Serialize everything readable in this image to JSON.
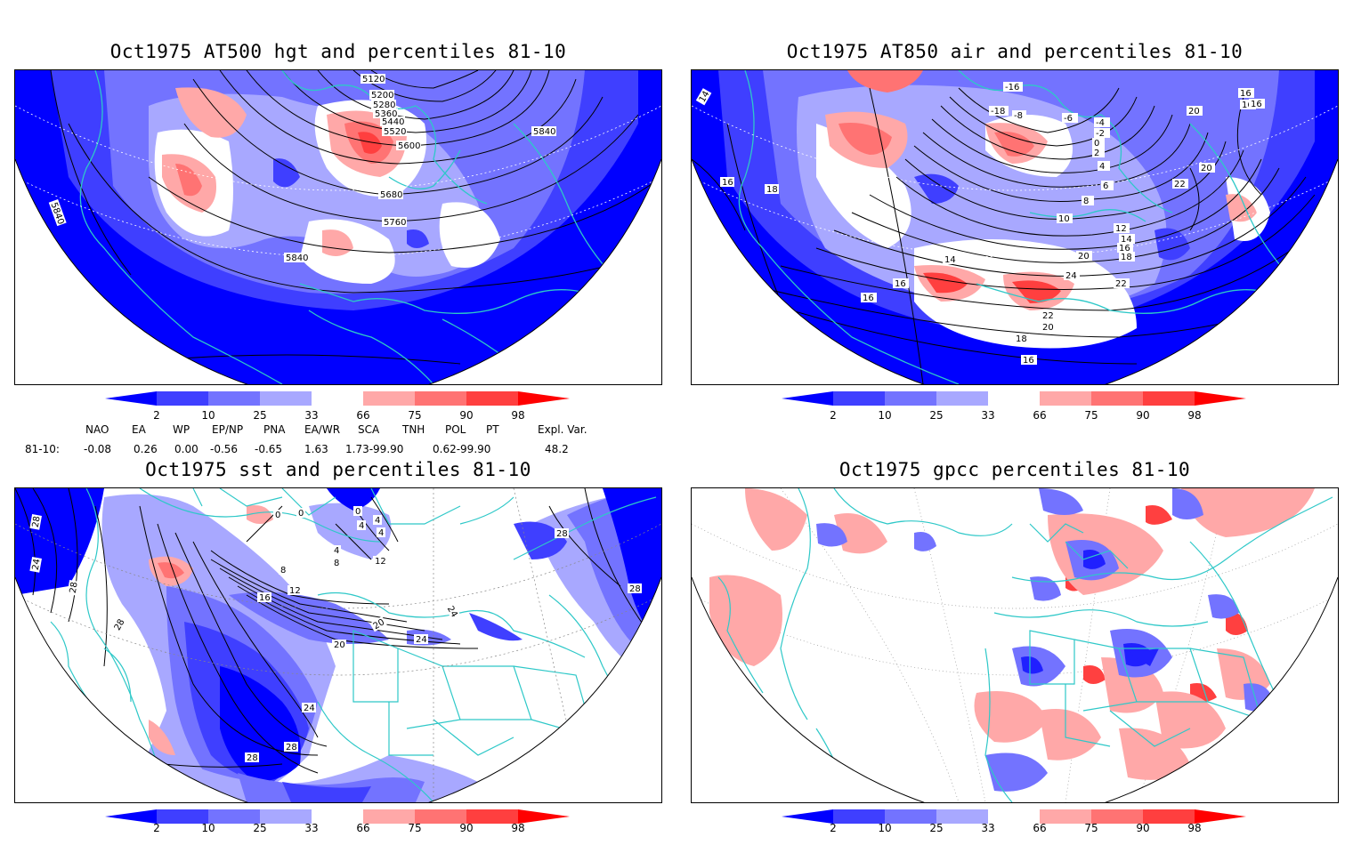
{
  "panels": {
    "p1": {
      "title": "Oct1975 AT500 hgt and percentiles 81-10",
      "contour_labels": [
        "5120",
        "5200",
        "5280",
        "5360",
        "5440",
        "5520",
        "5600",
        "5680",
        "5760",
        "5840",
        "5840",
        "5840"
      ]
    },
    "p2": {
      "title": "Oct1975 AT850 air and percentiles 81-10",
      "contour_labels": [
        "14",
        "16",
        "18",
        "-16",
        "-18",
        "-8",
        "-6",
        "-4",
        "-2",
        "0",
        "2",
        "4",
        "6",
        "8",
        "10",
        "12",
        "14",
        "16",
        "18",
        "20",
        "22",
        "24",
        "22",
        "20",
        "18",
        "16",
        "16",
        "16",
        "14",
        "16",
        "20",
        "20",
        "22",
        "16",
        "16"
      ]
    },
    "p3": {
      "title": "Oct1975 sst and percentiles 81-10",
      "contour_labels": [
        "28",
        "24",
        "28",
        "28",
        "0",
        "0",
        "0",
        "4",
        "4",
        "4",
        "8",
        "8",
        "12",
        "16",
        "20",
        "20",
        "24",
        "24",
        "24",
        "28",
        "28",
        "28",
        "28",
        "4",
        "12"
      ]
    },
    "p4": {
      "title": "Oct1975 gpcc percentiles 81-10",
      "contour_labels": []
    }
  },
  "colorbar": {
    "labels": [
      "2",
      "10",
      "25",
      "33",
      "66",
      "75",
      "90",
      "98"
    ],
    "colors": [
      "#0000ff",
      "#3f3fff",
      "#7373ff",
      "#a8a8ff",
      "#ffffff",
      "#ffa8a8",
      "#ff7373",
      "#ff3f3f",
      "#ff0000"
    ]
  },
  "indices": {
    "header": [
      "NAO",
      "EA",
      "WP",
      "EP/NP",
      "PNA",
      "EA/WR",
      "SCA",
      "TNH",
      "POL",
      "PT",
      "Expl. Var."
    ],
    "row_label": "81-10:",
    "values": [
      "-0.08",
      "0.26",
      "0.00",
      "-0.56",
      "-0.65",
      "1.63",
      "1.73-99.90",
      "",
      "0.62-99.90",
      "",
      "48.2"
    ]
  },
  "colors": {
    "coast": "#2ec8c8",
    "deep_blue": "#0000ff",
    "red": "#ff2020"
  }
}
